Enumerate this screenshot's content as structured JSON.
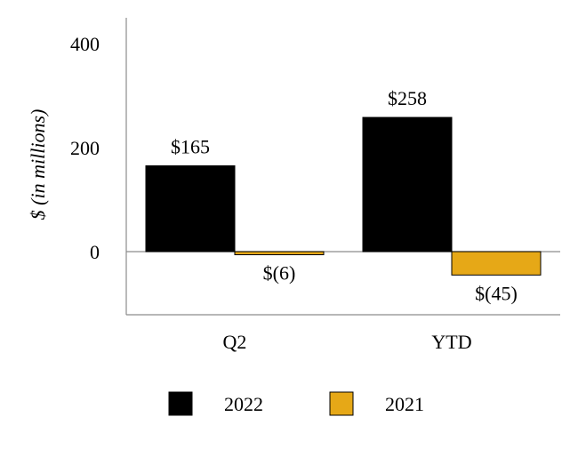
{
  "chart_data": {
    "type": "bar",
    "categories": [
      "Q2",
      "YTD"
    ],
    "series": [
      {
        "name": "2022",
        "values": [
          165,
          258
        ],
        "labels": [
          "$165",
          "$258"
        ],
        "color": "#000000"
      },
      {
        "name": "2021",
        "values": [
          -6,
          -45
        ],
        "labels": [
          "$(6)",
          "$(45)"
        ],
        "color": "#E6A817"
      }
    ],
    "title": "",
    "xlabel": "",
    "ylabel": "$ (in millions)",
    "ylim": [
      -120,
      400
    ],
    "yticks": [
      0,
      200,
      400
    ],
    "ytick_labels": [
      "0",
      "200",
      "400"
    ],
    "grid": false,
    "legend": "bottom"
  }
}
